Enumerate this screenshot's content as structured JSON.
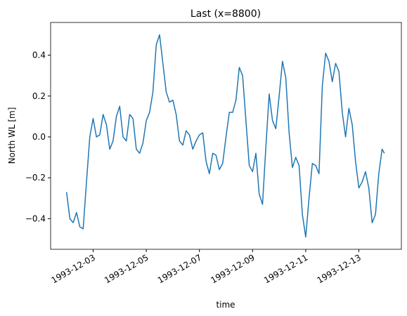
{
  "chart_data": {
    "type": "line",
    "title": "Last (x=8800)",
    "x_label": "time",
    "y_label": "North WL [m]",
    "x": [
      "1993-12-02T00:00",
      "1993-12-02T03:00",
      "1993-12-02T06:00",
      "1993-12-02T09:00",
      "1993-12-02T12:00",
      "1993-12-02T15:00",
      "1993-12-02T18:00",
      "1993-12-02T21:00",
      "1993-12-03T00:00",
      "1993-12-03T03:00",
      "1993-12-03T06:00",
      "1993-12-03T09:00",
      "1993-12-03T12:00",
      "1993-12-03T15:00",
      "1993-12-03T18:00",
      "1993-12-03T21:00",
      "1993-12-04T00:00",
      "1993-12-04T03:00",
      "1993-12-04T06:00",
      "1993-12-04T09:00",
      "1993-12-04T12:00",
      "1993-12-04T15:00",
      "1993-12-04T18:00",
      "1993-12-04T21:00",
      "1993-12-05T00:00",
      "1993-12-05T03:00",
      "1993-12-05T06:00",
      "1993-12-05T09:00",
      "1993-12-05T12:00",
      "1993-12-05T15:00",
      "1993-12-05T18:00",
      "1993-12-05T21:00",
      "1993-12-06T00:00",
      "1993-12-06T03:00",
      "1993-12-06T06:00",
      "1993-12-06T09:00",
      "1993-12-06T12:00",
      "1993-12-06T15:00",
      "1993-12-06T18:00",
      "1993-12-06T21:00",
      "1993-12-07T00:00",
      "1993-12-07T03:00",
      "1993-12-07T06:00",
      "1993-12-07T09:00",
      "1993-12-07T12:00",
      "1993-12-07T15:00",
      "1993-12-07T18:00",
      "1993-12-07T21:00",
      "1993-12-08T00:00",
      "1993-12-08T03:00",
      "1993-12-08T06:00",
      "1993-12-08T09:00",
      "1993-12-08T12:00",
      "1993-12-08T15:00",
      "1993-12-08T18:00",
      "1993-12-08T21:00",
      "1993-12-09T00:00",
      "1993-12-09T03:00",
      "1993-12-09T06:00",
      "1993-12-09T09:00",
      "1993-12-09T12:00",
      "1993-12-09T15:00",
      "1993-12-09T18:00",
      "1993-12-09T21:00",
      "1993-12-10T00:00",
      "1993-12-10T03:00",
      "1993-12-10T06:00",
      "1993-12-10T09:00",
      "1993-12-10T12:00",
      "1993-12-10T15:00",
      "1993-12-10T18:00",
      "1993-12-10T21:00",
      "1993-12-11T00:00",
      "1993-12-11T03:00",
      "1993-12-11T06:00",
      "1993-12-11T09:00",
      "1993-12-11T12:00",
      "1993-12-11T15:00",
      "1993-12-11T18:00",
      "1993-12-11T21:00",
      "1993-12-12T00:00",
      "1993-12-12T03:00",
      "1993-12-12T06:00",
      "1993-12-12T09:00",
      "1993-12-12T12:00",
      "1993-12-12T15:00",
      "1993-12-12T18:00",
      "1993-12-12T21:00",
      "1993-12-13T00:00",
      "1993-12-13T03:00",
      "1993-12-13T06:00",
      "1993-12-13T09:00",
      "1993-12-13T12:00",
      "1993-12-13T15:00",
      "1993-12-13T18:00",
      "1993-12-13T21:00",
      "1993-12-13T23:00"
    ],
    "series": [
      {
        "name": "North WL",
        "color": "#1f77b4",
        "values": [
          -0.27,
          -0.4,
          -0.42,
          -0.37,
          -0.44,
          -0.45,
          -0.22,
          0.0,
          0.09,
          0.0,
          0.01,
          0.11,
          0.06,
          -0.06,
          -0.02,
          0.1,
          0.15,
          0.0,
          -0.02,
          0.11,
          0.09,
          -0.06,
          -0.08,
          -0.03,
          0.08,
          0.12,
          0.22,
          0.45,
          0.5,
          0.36,
          0.22,
          0.17,
          0.18,
          0.11,
          -0.02,
          -0.04,
          0.03,
          0.01,
          -0.06,
          -0.02,
          0.01,
          0.02,
          -0.12,
          -0.18,
          -0.08,
          -0.09,
          -0.16,
          -0.13,
          0.0,
          0.12,
          0.12,
          0.18,
          0.34,
          0.3,
          0.08,
          -0.14,
          -0.17,
          -0.08,
          -0.28,
          -0.33,
          -0.05,
          0.21,
          0.08,
          0.04,
          0.2,
          0.37,
          0.29,
          0.02,
          -0.15,
          -0.1,
          -0.14,
          -0.38,
          -0.49,
          -0.3,
          -0.13,
          -0.14,
          -0.18,
          0.25,
          0.41,
          0.37,
          0.27,
          0.36,
          0.32,
          0.12,
          0.0,
          0.14,
          0.06,
          -0.12,
          -0.25,
          -0.22,
          -0.17,
          -0.25,
          -0.42,
          -0.38,
          -0.18,
          -0.06,
          -0.08
        ]
      }
    ],
    "xlim": [
      "1993-12-01T09:36",
      "1993-12-14T14:24"
    ],
    "xticks": [
      "1993-12-03",
      "1993-12-05",
      "1993-12-07",
      "1993-12-09",
      "1993-12-11",
      "1993-12-13"
    ],
    "ylim": [
      -0.55,
      0.56
    ],
    "yticks": [
      {
        "value": -0.4,
        "label": "−0.4"
      },
      {
        "value": -0.2,
        "label": "−0.2"
      },
      {
        "value": 0,
        "label": "0.0"
      },
      0.2,
      0.4
    ]
  }
}
